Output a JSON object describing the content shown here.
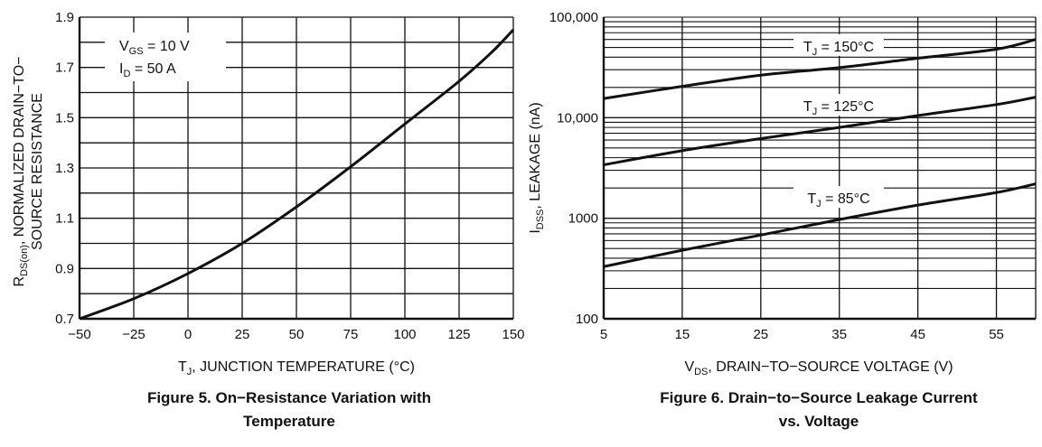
{
  "chart_data": [
    {
      "type": "line",
      "caption_line1": "Figure 5. On−Resistance Variation with",
      "caption_line2": "Temperature",
      "xlabel": {
        "main": "T",
        "sub": "J",
        "rest": ", JUNCTION TEMPERATURE (°C)"
      },
      "ylabel": {
        "main": "R",
        "sub": "DS(on)",
        "rest": ", NORMALIZED DRAIN−TO−",
        "line2": "SOURCE RESISTANCE"
      },
      "xlim": [
        -50,
        150
      ],
      "ylim": [
        0.7,
        1.9
      ],
      "x_ticks": [
        "−50",
        "−25",
        "0",
        "25",
        "50",
        "75",
        "100",
        "125",
        "150"
      ],
      "y_ticks": [
        "0.7",
        "0.9",
        "1.1",
        "1.3",
        "1.5",
        "1.7",
        "1.9"
      ],
      "grid": true,
      "annotation": {
        "line1": {
          "main": "V",
          "sub": "GS",
          "rest": " = 10 V"
        },
        "line2": {
          "main": "I",
          "sub": "D",
          "rest": " = 50 A"
        }
      },
      "series": [
        {
          "x": [
            -50,
            -25,
            0,
            25,
            50,
            75,
            100,
            125,
            140,
            150
          ],
          "y": [
            0.7,
            0.78,
            0.88,
            1.0,
            1.145,
            1.305,
            1.475,
            1.645,
            1.76,
            1.85
          ]
        }
      ]
    },
    {
      "type": "line",
      "caption_line1": "Figure 6. Drain−to−Source Leakage Current",
      "caption_line2": "vs. Voltage",
      "xlabel": {
        "main": "V",
        "sub": "DS",
        "rest": ", DRAIN−TO−SOURCE VOLTAGE (V)"
      },
      "ylabel": {
        "main": "I",
        "sub": "DSS",
        "rest": ", LEAKAGE (nA)"
      },
      "xlim": [
        5,
        60
      ],
      "ylim": [
        100,
        100000
      ],
      "yscale": "log",
      "x_ticks": [
        "5",
        "15",
        "25",
        "35",
        "45",
        "55"
      ],
      "y_ticks": [
        "100",
        "1000",
        "10,000",
        "100,000"
      ],
      "grid": true,
      "series": [
        {
          "name": "T_J = 150°C",
          "label": {
            "main": "T",
            "sub": "J",
            "rest": " = 150°C"
          },
          "x": [
            5,
            15,
            25,
            35,
            45,
            55,
            60
          ],
          "y": [
            15500,
            20500,
            26500,
            31500,
            39000,
            48000,
            60000
          ]
        },
        {
          "name": "T_J = 125°C",
          "label": {
            "main": "T",
            "sub": "J",
            "rest": " = 125°C"
          },
          "x": [
            5,
            15,
            25,
            35,
            45,
            55,
            60
          ],
          "y": [
            3400,
            4700,
            6200,
            8000,
            10500,
            13500,
            16000
          ]
        },
        {
          "name": "T_J = 85°C",
          "label": {
            "main": "T",
            "sub": "J",
            "rest": " = 85°C"
          },
          "x": [
            5,
            15,
            25,
            35,
            45,
            55,
            60
          ],
          "y": [
            330,
            480,
            680,
            970,
            1350,
            1800,
            2200
          ]
        }
      ]
    }
  ]
}
